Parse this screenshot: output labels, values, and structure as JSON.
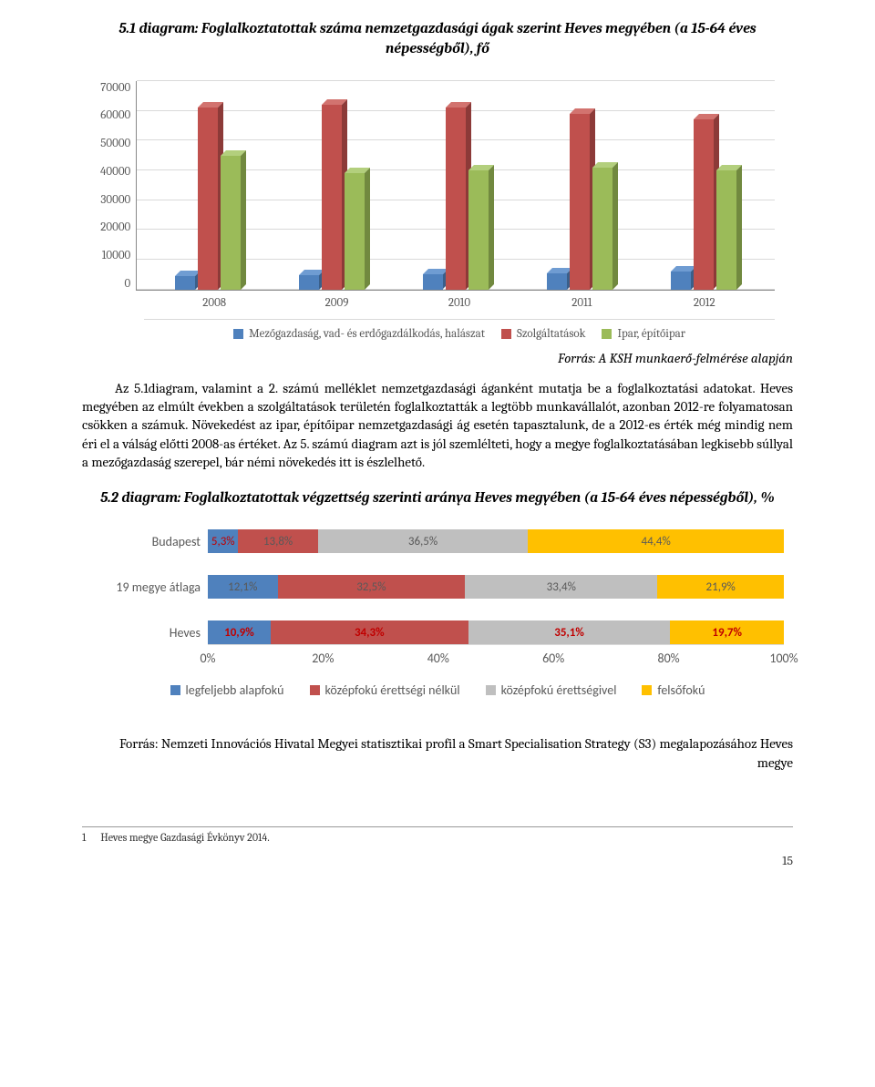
{
  "chart1": {
    "title": "5.1 diagram: Foglalkoztatottak száma nemzetgazdasági ágak szerint Heves megyében (a 15-64 éves népességből), fő",
    "type": "bar",
    "ymax": 70000,
    "ystep": 10000,
    "yticks": [
      "70000",
      "60000",
      "50000",
      "40000",
      "30000",
      "20000",
      "10000",
      "0"
    ],
    "categories": [
      "2008",
      "2009",
      "2010",
      "2011",
      "2012"
    ],
    "series": [
      {
        "name": "Mezőgazdaság, vad- és erdőgazdálkodás, halászat",
        "color": "#4f81bd",
        "dark": "#3a5f8a",
        "light": "#6f9cd2"
      },
      {
        "name": "Szolgáltatások",
        "color": "#c0504d",
        "dark": "#8c3a38",
        "light": "#d2736f"
      },
      {
        "name": "Ipar, építőipar",
        "color": "#9bbb59",
        "dark": "#71893f",
        "light": "#b3cf7d"
      }
    ],
    "data": [
      [
        4500,
        61000,
        45000
      ],
      [
        4800,
        62000,
        39000
      ],
      [
        5000,
        61000,
        40000
      ],
      [
        5500,
        59000,
        41000
      ],
      [
        6000,
        57000,
        40000
      ]
    ],
    "grid_color": "#d9d9d9",
    "text_color": "#595959",
    "label_fontsize": 13,
    "source": "Forrás: A KSH munkaerő-felmérése alapján"
  },
  "paragraph": "Az 5.1diagram, valamint a 2. számú melléklet nemzetgazdasági áganként mutatja be a foglalkoztatási adatokat. Heves megyében az elmúlt években a szolgáltatások területén foglalkoztatták a legtöbb munkavállalót, azonban 2012-re folyamatosan csökken a számuk. Növekedést az ipar, építőipar nemzetgazdasági ág esetén tapasztalunk, de a 2012-es érték még mindig nem éri el a válság előtti 2008-as értéket. Az 5. számú diagram azt is jól szemlélteti, hogy a megye foglalkoztatásában legkisebb súllyal a mezőgazdaság szerepel, bár némi növekedés itt is észlelhető.",
  "chart2": {
    "title": "5.2 diagram: Foglalkoztatottak végzettség szerinti aránya Heves megyében (a 15-64 éves népességből), %",
    "type": "stacked-bar-horizontal",
    "categories": [
      "Budapest",
      "19 megye átlaga",
      "Heves"
    ],
    "xticks": [
      "0%",
      "20%",
      "40%",
      "60%",
      "80%",
      "100%"
    ],
    "series": [
      {
        "name": "legfeljebb alapfokú",
        "color": "#4f81bd"
      },
      {
        "name": "középfokú érettségi nélkül",
        "color": "#c0504d"
      },
      {
        "name": "középfokú érettségivel",
        "color": "#bfbfbf"
      },
      {
        "name": "felsőfokú",
        "color": "#ffc000"
      }
    ],
    "rows": [
      {
        "label": "Budapest",
        "values": [
          5.3,
          13.8,
          36.5,
          44.4
        ],
        "labels": [
          "5,3%",
          "13,8%",
          "36,5%",
          "44,4%"
        ],
        "emph": false,
        "value_colors": [
          "#c00000",
          "#595959",
          "#595959",
          "#595959"
        ]
      },
      {
        "label": "19 megye átlaga",
        "values": [
          12.1,
          32.5,
          33.4,
          21.9
        ],
        "labels": [
          "12,1%",
          "32,5%",
          "33,4%",
          "21,9%"
        ],
        "emph": false,
        "value_colors": [
          "#595959",
          "#595959",
          "#595959",
          "#595959"
        ]
      },
      {
        "label": "Heves",
        "values": [
          10.9,
          34.3,
          35.1,
          19.7
        ],
        "labels": [
          "10,9%",
          "34,3%",
          "35,1%",
          "19,7%"
        ],
        "emph": true,
        "value_colors": [
          "#c00000",
          "#c00000",
          "#c00000",
          "#c00000"
        ]
      }
    ],
    "grid_color": "#d9d9d9",
    "text_color": "#595959",
    "label_fontsize": 14,
    "source": "Forrás: Nemzeti Innovációs Hivatal Megyei statisztikai profil a Smart Specialisation Strategy (S3) megalapozásához Heves megye"
  },
  "footer": {
    "note_num": "1",
    "note_text": "Heves megye Gazdasági Évkönyv 2014.",
    "page": "15"
  }
}
